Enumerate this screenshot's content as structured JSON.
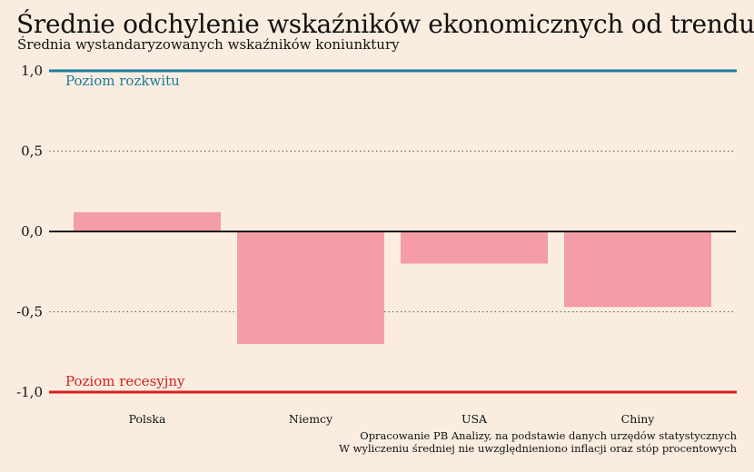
{
  "title": "Średnie odchylenie wskaźników ekonomicznych od trendu",
  "subtitle": "Średnia wystandaryzowanych wskaźników koniunktury",
  "notes": [
    "Opracowanie PB Analizy, na podstawie danych urzędów statystycznych",
    "W wyliczeniu średniej nie uwzględnieniono inflacji oraz stóp procentowych"
  ],
  "colors": {
    "bar": "#f49ca8",
    "upper_line": "#1a7b9c",
    "lower_line": "#d81d1d",
    "zero_line": "#111111",
    "background": "#faede0"
  },
  "chart_data": {
    "type": "bar",
    "categories": [
      "Polska",
      "Niemcy",
      "USA",
      "Chiny"
    ],
    "values": [
      0.12,
      -0.7,
      -0.2,
      -0.47
    ],
    "ylim": [
      -1.0,
      1.0
    ],
    "yticks": [
      1.0,
      0.5,
      0.0,
      -0.5,
      -1.0
    ],
    "ytick_labels": [
      "1,0",
      "0,5",
      "0,0",
      "-0,5",
      "-1,0"
    ],
    "grid": "dotted horizontal",
    "reference_lines": [
      {
        "value": 1.0,
        "label": "Poziom rozkwitu",
        "color": "#1a7b9c"
      },
      {
        "value": -1.0,
        "label": "Poziom recesyjny",
        "color": "#d81d1d"
      }
    ]
  }
}
